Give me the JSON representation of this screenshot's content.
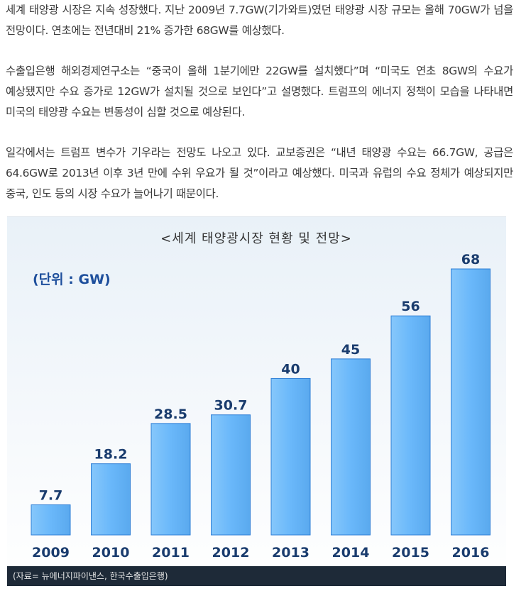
{
  "article": {
    "paragraphs": [
      "세계 태양광 시장은 지속 성장했다. 지난 2009년 7.7GW(기가와트)였던 태양광 시장 규모는 올해 70GW가 넘을 전망이다. 연초에는 전년대비 21% 증가한 68GW를 예상했다.",
      "수출입은행 해외경제연구소는 “중국이 올해 1분기에만 22GW를 설치했다”며 “미국도 연초 8GW의 수요가 예상됐지만 수요 증가로 12GW가 설치될 것으로 보인다”고 설명했다. 트럼프의 에너지 정책이 모습을 나타내면 미국의 태양광 수요는 변동성이 심할 것으로 예상된다.",
      "일각에서는 트럼프 변수가 기우라는 전망도 나오고 있다. 교보증권은 “내년 태양광 수요는 66.7GW, 공급은 64.6GW로 2013년 이후 3년 만에 수위 우요가 될 것”이라고 예상했다. 미국과 유럽의 수요 정체가 예상되지만 중국, 인도 등의 시장 수요가 늘어나기 때문이다."
    ]
  },
  "chart_data": {
    "type": "bar",
    "title": "<세계 태양광시장 현황 및 전망>",
    "unit_label": "(단위 : GW)",
    "categories": [
      "2009",
      "2010",
      "2011",
      "2012",
      "2013",
      "2014",
      "2015",
      "2016"
    ],
    "values": [
      7.7,
      18.2,
      28.5,
      30.7,
      40,
      45,
      56,
      68
    ],
    "value_labels": [
      "7.7",
      "18.2",
      "28.5",
      "30.7",
      "40",
      "45",
      "56",
      "68"
    ],
    "ylim": [
      0,
      70
    ],
    "grid": false,
    "colors": {
      "bar": "#6ab8fa",
      "bar_edge": "#2f7fd6",
      "value_text": "#1a3c6e",
      "title_text": "#333333",
      "unit_text": "#1e4f9c"
    }
  },
  "figure": {
    "caption": "(자료= 뉴에너지파이낸스, 한국수출입은행)"
  }
}
